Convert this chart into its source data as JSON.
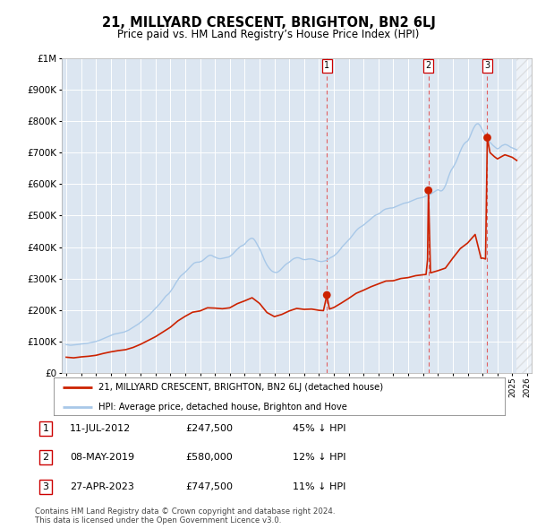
{
  "title": "21, MILLYARD CRESCENT, BRIGHTON, BN2 6LJ",
  "subtitle": "Price paid vs. HM Land Registry’s House Price Index (HPI)",
  "ylim": [
    0,
    1000000
  ],
  "yticks": [
    0,
    100000,
    200000,
    300000,
    400000,
    500000,
    600000,
    700000,
    800000,
    900000,
    1000000
  ],
  "ytick_labels": [
    "£0",
    "£100K",
    "£200K",
    "£300K",
    "£400K",
    "£500K",
    "£600K",
    "£700K",
    "£800K",
    "£900K",
    "£1M"
  ],
  "background_color": "#ffffff",
  "plot_bg_color": "#dce6f1",
  "grid_color": "#ffffff",
  "sale_dates": [
    "11-JUL-2012",
    "08-MAY-2019",
    "27-APR-2023"
  ],
  "sale_prices": [
    247500,
    580000,
    747500
  ],
  "sale_years_num": [
    2012.53,
    2019.36,
    2023.32
  ],
  "sale_pct": [
    "45%",
    "12%",
    "11%"
  ],
  "hpi_color": "#a8c8e8",
  "price_color": "#cc2200",
  "vline_color": "#e06060",
  "legend_label_price": "21, MILLYARD CRESCENT, BRIGHTON, BN2 6LJ (detached house)",
  "legend_label_hpi": "HPI: Average price, detached house, Brighton and Hove",
  "footer": "Contains HM Land Registry data © Crown copyright and database right 2024.\nThis data is licensed under the Open Government Licence v3.0.",
  "xlim": [
    1994.7,
    2026.3
  ],
  "xtick_years": [
    1995,
    1996,
    1997,
    1998,
    1999,
    2000,
    2001,
    2002,
    2003,
    2004,
    2005,
    2006,
    2007,
    2008,
    2009,
    2010,
    2011,
    2012,
    2013,
    2014,
    2015,
    2016,
    2017,
    2018,
    2019,
    2020,
    2021,
    2022,
    2023,
    2024,
    2025,
    2026
  ],
  "hpi_data": [
    [
      1995.0,
      90000
    ],
    [
      1995.1,
      89500
    ],
    [
      1995.2,
      88500
    ],
    [
      1995.3,
      88000
    ],
    [
      1995.4,
      88500
    ],
    [
      1995.5,
      89000
    ],
    [
      1995.6,
      89500
    ],
    [
      1995.7,
      90000
    ],
    [
      1995.8,
      90500
    ],
    [
      1995.9,
      91000
    ],
    [
      1996.0,
      92000
    ],
    [
      1996.1,
      92500
    ],
    [
      1996.2,
      93000
    ],
    [
      1996.3,
      93500
    ],
    [
      1996.4,
      94000
    ],
    [
      1996.5,
      95000
    ],
    [
      1996.6,
      96000
    ],
    [
      1996.7,
      97000
    ],
    [
      1996.8,
      98000
    ],
    [
      1996.9,
      99000
    ],
    [
      1997.0,
      100000
    ],
    [
      1997.1,
      101500
    ],
    [
      1997.2,
      103000
    ],
    [
      1997.3,
      105000
    ],
    [
      1997.4,
      107000
    ],
    [
      1997.5,
      109000
    ],
    [
      1997.6,
      111000
    ],
    [
      1997.7,
      113000
    ],
    [
      1997.8,
      115000
    ],
    [
      1997.9,
      117000
    ],
    [
      1998.0,
      119000
    ],
    [
      1998.1,
      121000
    ],
    [
      1998.2,
      123000
    ],
    [
      1998.3,
      124000
    ],
    [
      1998.4,
      125000
    ],
    [
      1998.5,
      126000
    ],
    [
      1998.6,
      127000
    ],
    [
      1998.7,
      128000
    ],
    [
      1998.8,
      129000
    ],
    [
      1998.9,
      130000
    ],
    [
      1999.0,
      132000
    ],
    [
      1999.1,
      134000
    ],
    [
      1999.2,
      136000
    ],
    [
      1999.3,
      139000
    ],
    [
      1999.4,
      142000
    ],
    [
      1999.5,
      145000
    ],
    [
      1999.6,
      148000
    ],
    [
      1999.7,
      151000
    ],
    [
      1999.8,
      154000
    ],
    [
      1999.9,
      157000
    ],
    [
      2000.0,
      161000
    ],
    [
      2000.1,
      165000
    ],
    [
      2000.2,
      169000
    ],
    [
      2000.3,
      173000
    ],
    [
      2000.4,
      177000
    ],
    [
      2000.5,
      181000
    ],
    [
      2000.6,
      185000
    ],
    [
      2000.7,
      190000
    ],
    [
      2000.8,
      195000
    ],
    [
      2000.9,
      200000
    ],
    [
      2001.0,
      205000
    ],
    [
      2001.1,
      210000
    ],
    [
      2001.2,
      215000
    ],
    [
      2001.3,
      220000
    ],
    [
      2001.4,
      226000
    ],
    [
      2001.5,
      232000
    ],
    [
      2001.6,
      238000
    ],
    [
      2001.7,
      244000
    ],
    [
      2001.8,
      248000
    ],
    [
      2001.9,
      252000
    ],
    [
      2002.0,
      258000
    ],
    [
      2002.1,
      265000
    ],
    [
      2002.2,
      272000
    ],
    [
      2002.3,
      280000
    ],
    [
      2002.4,
      288000
    ],
    [
      2002.5,
      295000
    ],
    [
      2002.6,
      302000
    ],
    [
      2002.7,
      308000
    ],
    [
      2002.8,
      312000
    ],
    [
      2002.9,
      316000
    ],
    [
      2003.0,
      320000
    ],
    [
      2003.1,
      325000
    ],
    [
      2003.2,
      330000
    ],
    [
      2003.3,
      335000
    ],
    [
      2003.4,
      340000
    ],
    [
      2003.5,
      345000
    ],
    [
      2003.6,
      349000
    ],
    [
      2003.7,
      351000
    ],
    [
      2003.8,
      352000
    ],
    [
      2003.9,
      352000
    ],
    [
      2004.0,
      353000
    ],
    [
      2004.1,
      355000
    ],
    [
      2004.2,
      358000
    ],
    [
      2004.3,
      362000
    ],
    [
      2004.4,
      366000
    ],
    [
      2004.5,
      370000
    ],
    [
      2004.6,
      373000
    ],
    [
      2004.7,
      374000
    ],
    [
      2004.8,
      373000
    ],
    [
      2004.9,
      370000
    ],
    [
      2005.0,
      368000
    ],
    [
      2005.1,
      366000
    ],
    [
      2005.2,
      364000
    ],
    [
      2005.3,
      363000
    ],
    [
      2005.4,
      363000
    ],
    [
      2005.5,
      364000
    ],
    [
      2005.6,
      365000
    ],
    [
      2005.7,
      366000
    ],
    [
      2005.8,
      367000
    ],
    [
      2005.9,
      368000
    ],
    [
      2006.0,
      370000
    ],
    [
      2006.1,
      374000
    ],
    [
      2006.2,
      378000
    ],
    [
      2006.3,
      383000
    ],
    [
      2006.4,
      388000
    ],
    [
      2006.5,
      393000
    ],
    [
      2006.6,
      397000
    ],
    [
      2006.7,
      401000
    ],
    [
      2006.8,
      404000
    ],
    [
      2006.9,
      406000
    ],
    [
      2007.0,
      409000
    ],
    [
      2007.1,
      415000
    ],
    [
      2007.2,
      420000
    ],
    [
      2007.3,
      424000
    ],
    [
      2007.4,
      427000
    ],
    [
      2007.5,
      428000
    ],
    [
      2007.6,
      426000
    ],
    [
      2007.7,
      420000
    ],
    [
      2007.8,
      412000
    ],
    [
      2007.9,
      403000
    ],
    [
      2008.0,
      395000
    ],
    [
      2008.1,
      385000
    ],
    [
      2008.2,
      374000
    ],
    [
      2008.3,
      362000
    ],
    [
      2008.4,
      352000
    ],
    [
      2008.5,
      343000
    ],
    [
      2008.6,
      336000
    ],
    [
      2008.7,
      330000
    ],
    [
      2008.8,
      325000
    ],
    [
      2008.9,
      322000
    ],
    [
      2009.0,
      320000
    ],
    [
      2009.1,
      319000
    ],
    [
      2009.2,
      320000
    ],
    [
      2009.3,
      323000
    ],
    [
      2009.4,
      327000
    ],
    [
      2009.5,
      332000
    ],
    [
      2009.6,
      337000
    ],
    [
      2009.7,
      342000
    ],
    [
      2009.8,
      346000
    ],
    [
      2009.9,
      349000
    ],
    [
      2010.0,
      352000
    ],
    [
      2010.1,
      356000
    ],
    [
      2010.2,
      360000
    ],
    [
      2010.3,
      363000
    ],
    [
      2010.4,
      365000
    ],
    [
      2010.5,
      366000
    ],
    [
      2010.6,
      366000
    ],
    [
      2010.7,
      365000
    ],
    [
      2010.8,
      363000
    ],
    [
      2010.9,
      361000
    ],
    [
      2011.0,
      360000
    ],
    [
      2011.1,
      360000
    ],
    [
      2011.2,
      361000
    ],
    [
      2011.3,
      362000
    ],
    [
      2011.4,
      362000
    ],
    [
      2011.5,
      362000
    ],
    [
      2011.6,
      361000
    ],
    [
      2011.7,
      360000
    ],
    [
      2011.8,
      358000
    ],
    [
      2011.9,
      356000
    ],
    [
      2012.0,
      355000
    ],
    [
      2012.1,
      354000
    ],
    [
      2012.2,
      354000
    ],
    [
      2012.3,
      355000
    ],
    [
      2012.4,
      356000
    ],
    [
      2012.5,
      358000
    ],
    [
      2012.6,
      361000
    ],
    [
      2012.7,
      364000
    ],
    [
      2012.8,
      367000
    ],
    [
      2012.9,
      369000
    ],
    [
      2013.0,
      372000
    ],
    [
      2013.1,
      376000
    ],
    [
      2013.2,
      380000
    ],
    [
      2013.3,
      385000
    ],
    [
      2013.4,
      391000
    ],
    [
      2013.5,
      397000
    ],
    [
      2013.6,
      403000
    ],
    [
      2013.7,
      408000
    ],
    [
      2013.8,
      413000
    ],
    [
      2013.9,
      418000
    ],
    [
      2014.0,
      423000
    ],
    [
      2014.1,
      428000
    ],
    [
      2014.2,
      434000
    ],
    [
      2014.3,
      440000
    ],
    [
      2014.4,
      446000
    ],
    [
      2014.5,
      452000
    ],
    [
      2014.6,
      457000
    ],
    [
      2014.7,
      461000
    ],
    [
      2014.8,
      464000
    ],
    [
      2014.9,
      467000
    ],
    [
      2015.0,
      470000
    ],
    [
      2015.1,
      474000
    ],
    [
      2015.2,
      478000
    ],
    [
      2015.3,
      482000
    ],
    [
      2015.4,
      486000
    ],
    [
      2015.5,
      490000
    ],
    [
      2015.6,
      494000
    ],
    [
      2015.7,
      498000
    ],
    [
      2015.8,
      501000
    ],
    [
      2015.9,
      503000
    ],
    [
      2016.0,
      505000
    ],
    [
      2016.1,
      508000
    ],
    [
      2016.2,
      512000
    ],
    [
      2016.3,
      516000
    ],
    [
      2016.4,
      519000
    ],
    [
      2016.5,
      521000
    ],
    [
      2016.6,
      522000
    ],
    [
      2016.7,
      523000
    ],
    [
      2016.8,
      524000
    ],
    [
      2016.9,
      524000
    ],
    [
      2017.0,
      525000
    ],
    [
      2017.1,
      527000
    ],
    [
      2017.2,
      529000
    ],
    [
      2017.3,
      531000
    ],
    [
      2017.4,
      533000
    ],
    [
      2017.5,
      535000
    ],
    [
      2017.6,
      537000
    ],
    [
      2017.7,
      539000
    ],
    [
      2017.8,
      540000
    ],
    [
      2017.9,
      541000
    ],
    [
      2018.0,
      542000
    ],
    [
      2018.1,
      544000
    ],
    [
      2018.2,
      546000
    ],
    [
      2018.3,
      548000
    ],
    [
      2018.4,
      550000
    ],
    [
      2018.5,
      552000
    ],
    [
      2018.6,
      554000
    ],
    [
      2018.7,
      555000
    ],
    [
      2018.8,
      556000
    ],
    [
      2018.9,
      557000
    ],
    [
      2019.0,
      558000
    ],
    [
      2019.1,
      560000
    ],
    [
      2019.2,
      562000
    ],
    [
      2019.3,
      564000
    ],
    [
      2019.4,
      566000
    ],
    [
      2019.5,
      568000
    ],
    [
      2019.6,
      571000
    ],
    [
      2019.7,
      574000
    ],
    [
      2019.8,
      577000
    ],
    [
      2019.9,
      580000
    ],
    [
      2020.0,
      582000
    ],
    [
      2020.1,
      580000
    ],
    [
      2020.2,
      578000
    ],
    [
      2020.3,
      580000
    ],
    [
      2020.4,
      586000
    ],
    [
      2020.5,
      595000
    ],
    [
      2020.6,
      607000
    ],
    [
      2020.7,
      622000
    ],
    [
      2020.8,
      635000
    ],
    [
      2020.9,
      645000
    ],
    [
      2021.0,
      652000
    ],
    [
      2021.1,
      660000
    ],
    [
      2021.2,
      669000
    ],
    [
      2021.3,
      680000
    ],
    [
      2021.4,
      692000
    ],
    [
      2021.5,
      704000
    ],
    [
      2021.6,
      715000
    ],
    [
      2021.7,
      724000
    ],
    [
      2021.8,
      730000
    ],
    [
      2021.9,
      734000
    ],
    [
      2022.0,
      737000
    ],
    [
      2022.1,
      745000
    ],
    [
      2022.2,
      756000
    ],
    [
      2022.3,
      768000
    ],
    [
      2022.4,
      778000
    ],
    [
      2022.5,
      786000
    ],
    [
      2022.6,
      791000
    ],
    [
      2022.7,
      792000
    ],
    [
      2022.8,
      788000
    ],
    [
      2022.9,
      780000
    ],
    [
      2023.0,
      771000
    ],
    [
      2023.1,
      762000
    ],
    [
      2023.2,
      753000
    ],
    [
      2023.3,
      745000
    ],
    [
      2023.4,
      738000
    ],
    [
      2023.5,
      733000
    ],
    [
      2023.6,
      728000
    ],
    [
      2023.7,
      723000
    ],
    [
      2023.8,
      719000
    ],
    [
      2023.9,
      715000
    ],
    [
      2024.0,
      712000
    ],
    [
      2024.1,
      714000
    ],
    [
      2024.2,
      718000
    ],
    [
      2024.3,
      722000
    ],
    [
      2024.4,
      724000
    ],
    [
      2024.5,
      726000
    ],
    [
      2024.6,
      725000
    ],
    [
      2024.7,
      723000
    ],
    [
      2024.8,
      720000
    ],
    [
      2024.9,
      717000
    ],
    [
      2025.0,
      715000
    ],
    [
      2025.1,
      713000
    ],
    [
      2025.2,
      711000
    ],
    [
      2025.3,
      709000
    ]
  ],
  "price_line_data": [
    [
      1995.0,
      50000
    ],
    [
      1995.5,
      48000
    ],
    [
      1996.0,
      51000
    ],
    [
      1996.5,
      53000
    ],
    [
      1997.0,
      56000
    ],
    [
      1997.5,
      62000
    ],
    [
      1998.0,
      67000
    ],
    [
      1998.5,
      71000
    ],
    [
      1999.0,
      74000
    ],
    [
      1999.5,
      81000
    ],
    [
      2000.0,
      91000
    ],
    [
      2000.5,
      103000
    ],
    [
      2001.0,
      115000
    ],
    [
      2001.5,
      130000
    ],
    [
      2002.0,
      145000
    ],
    [
      2002.5,
      165000
    ],
    [
      2003.0,
      180000
    ],
    [
      2003.5,
      193000
    ],
    [
      2004.0,
      197000
    ],
    [
      2004.5,
      207000
    ],
    [
      2005.0,
      206000
    ],
    [
      2005.5,
      204000
    ],
    [
      2006.0,
      207000
    ],
    [
      2006.5,
      220000
    ],
    [
      2007.0,
      229000
    ],
    [
      2007.5,
      239000
    ],
    [
      2008.0,
      221000
    ],
    [
      2008.5,
      192000
    ],
    [
      2009.0,
      179000
    ],
    [
      2009.5,
      186000
    ],
    [
      2010.0,
      197000
    ],
    [
      2010.5,
      205000
    ],
    [
      2011.0,
      202000
    ],
    [
      2011.5,
      203000
    ],
    [
      2012.0,
      199000
    ],
    [
      2012.3,
      198000
    ],
    [
      2012.53,
      247500
    ],
    [
      2012.7,
      203000
    ],
    [
      2013.0,
      208000
    ],
    [
      2013.5,
      222000
    ],
    [
      2014.0,
      237000
    ],
    [
      2014.5,
      253000
    ],
    [
      2015.0,
      263000
    ],
    [
      2015.5,
      274000
    ],
    [
      2016.0,
      283000
    ],
    [
      2016.5,
      292000
    ],
    [
      2017.0,
      293000
    ],
    [
      2017.5,
      300000
    ],
    [
      2018.0,
      303000
    ],
    [
      2018.5,
      309000
    ],
    [
      2019.0,
      312000
    ],
    [
      2019.2,
      313000
    ],
    [
      2019.3,
      360000
    ],
    [
      2019.36,
      580000
    ],
    [
      2019.5,
      318000
    ],
    [
      2020.0,
      325000
    ],
    [
      2020.5,
      333000
    ],
    [
      2021.0,
      365000
    ],
    [
      2021.5,
      395000
    ],
    [
      2022.0,
      413000
    ],
    [
      2022.5,
      440000
    ],
    [
      2022.9,
      364000
    ],
    [
      2023.0,
      365000
    ],
    [
      2023.2,
      362000
    ],
    [
      2023.32,
      747500
    ],
    [
      2023.5,
      700000
    ],
    [
      2023.8,
      687000
    ],
    [
      2024.0,
      680000
    ],
    [
      2024.3,
      688000
    ],
    [
      2024.5,
      693000
    ],
    [
      2024.7,
      690000
    ],
    [
      2025.0,
      685000
    ],
    [
      2025.3,
      675000
    ]
  ]
}
